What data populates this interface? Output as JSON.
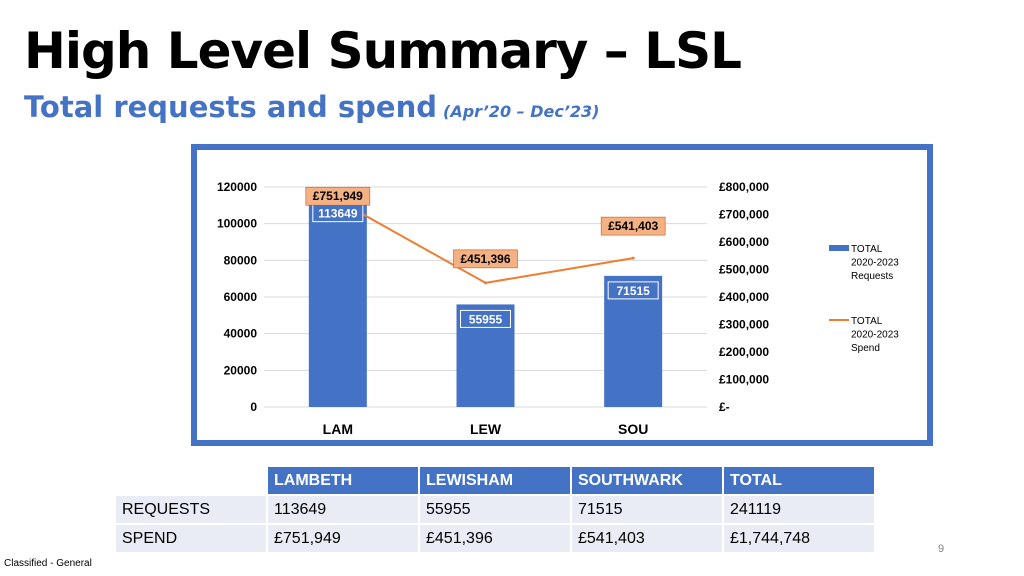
{
  "title": "High Level Summary – LSL",
  "subtitle": "Total requests and spend",
  "period": "(Apr’20 – Dec’23)",
  "chart_data": {
    "type": "bar+line",
    "categories": [
      "LAM",
      "LEW",
      "SOU"
    ],
    "bar_series": {
      "name": "TOTAL 2020-2023 Requests",
      "values": [
        113649,
        55955,
        71515
      ],
      "data_labels": [
        "113649",
        "55955",
        "71515"
      ],
      "color": "#4472c4"
    },
    "line_series": {
      "name": "TOTAL 2020-2023 Spend",
      "values": [
        751949,
        451396,
        541403
      ],
      "data_labels": [
        "£751,949",
        "£451,396",
        "£541,403"
      ],
      "color": "#ed7d31"
    },
    "y_left": {
      "ylim": [
        0,
        120000
      ],
      "ticks": [
        "120000",
        "100000",
        "80000",
        "60000",
        "40000",
        "20000",
        "0"
      ]
    },
    "y_right": {
      "ylim": [
        0,
        800000
      ],
      "ticks": [
        "£800,000",
        "£700,000",
        "£600,000",
        "£500,000",
        "£400,000",
        "£300,000",
        "£200,000",
        "£100,000",
        "£-"
      ]
    },
    "legend": [
      {
        "lines": [
          "TOTAL",
          "2020-2023",
          "Requests"
        ],
        "kind": "bar"
      },
      {
        "lines": [
          "TOTAL",
          "2020-2023",
          "Spend"
        ],
        "kind": "line"
      }
    ],
    "legend_position": "right",
    "grid": true
  },
  "table": {
    "headers": [
      "LAMBETH",
      "LEWISHAM",
      "SOUTHWARK",
      "TOTAL"
    ],
    "rows": [
      {
        "label": "REQUESTS",
        "values": [
          "113649",
          "55955",
          "71515",
          "241119"
        ]
      },
      {
        "label": "SPEND",
        "values": [
          "£751,949",
          "£451,396",
          "£541,403",
          "£1,744,748"
        ]
      }
    ]
  },
  "page_number": "9",
  "classification": "Classified - General"
}
